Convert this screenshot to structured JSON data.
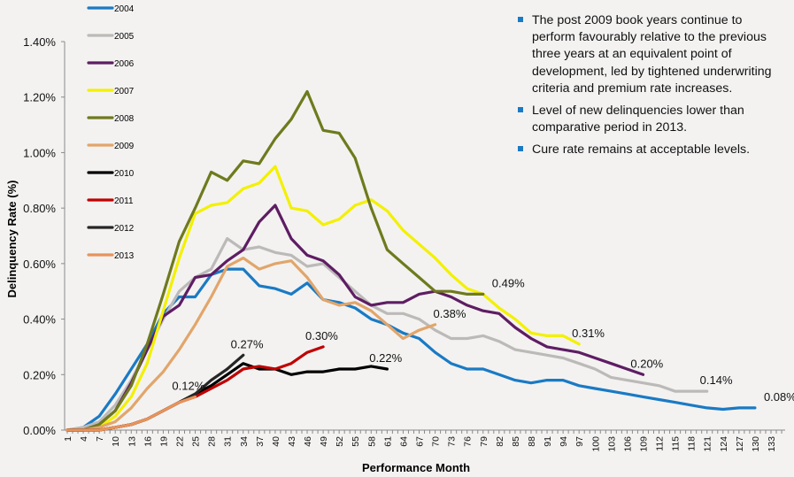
{
  "chart_data": {
    "type": "line",
    "title": "",
    "xlabel": "Performance Month",
    "ylabel": "Delinquency Rate (%)",
    "ylim": [
      0,
      1.4
    ],
    "xlim": [
      1,
      133
    ],
    "y_ticks": [
      "0.00%",
      "0.20%",
      "0.40%",
      "0.60%",
      "0.80%",
      "1.00%",
      "1.20%",
      "1.40%"
    ],
    "y_tick_values": [
      0,
      0.2,
      0.4,
      0.6,
      0.8,
      1.0,
      1.2,
      1.4
    ],
    "x_ticks": [
      1,
      4,
      7,
      10,
      13,
      16,
      19,
      22,
      25,
      28,
      31,
      34,
      37,
      40,
      43,
      46,
      49,
      52,
      55,
      58,
      61,
      64,
      67,
      70,
      73,
      76,
      79,
      82,
      85,
      88,
      91,
      94,
      97,
      100,
      103,
      106,
      109,
      112,
      115,
      118,
      121,
      124,
      127,
      130,
      133
    ],
    "grid": false,
    "legend_position": "top-left",
    "x_step": 3,
    "series": [
      {
        "name": "2004",
        "color": "#1a7ac4",
        "start": 1,
        "values": [
          0.0,
          0.01,
          0.05,
          0.13,
          0.22,
          0.31,
          0.42,
          0.48,
          0.48,
          0.56,
          0.58,
          0.58,
          0.52,
          0.51,
          0.49,
          0.53,
          0.47,
          0.46,
          0.44,
          0.4,
          0.38,
          0.35,
          0.33,
          0.28,
          0.24,
          0.22,
          0.22,
          0.2,
          0.18,
          0.17,
          0.18,
          0.18,
          0.16,
          0.15,
          0.14,
          0.13,
          0.12,
          0.11,
          0.1,
          0.09,
          0.08,
          0.075,
          0.08,
          0.08
        ]
      },
      {
        "name": "2005",
        "color": "#bcbab8",
        "start": 1,
        "values": [
          0.0,
          0.01,
          0.03,
          0.09,
          0.18,
          0.29,
          0.4,
          0.5,
          0.55,
          0.58,
          0.69,
          0.65,
          0.66,
          0.64,
          0.63,
          0.59,
          0.6,
          0.55,
          0.5,
          0.45,
          0.42,
          0.42,
          0.4,
          0.36,
          0.33,
          0.33,
          0.34,
          0.32,
          0.29,
          0.28,
          0.27,
          0.26,
          0.24,
          0.22,
          0.19,
          0.18,
          0.17,
          0.16,
          0.14,
          0.14,
          0.14
        ]
      },
      {
        "name": "2006",
        "color": "#5e1d63",
        "start": 1,
        "values": [
          0.0,
          0.0,
          0.02,
          0.07,
          0.17,
          0.29,
          0.41,
          0.45,
          0.55,
          0.56,
          0.61,
          0.65,
          0.75,
          0.81,
          0.69,
          0.63,
          0.61,
          0.56,
          0.48,
          0.45,
          0.46,
          0.46,
          0.49,
          0.5,
          0.48,
          0.45,
          0.43,
          0.42,
          0.37,
          0.33,
          0.3,
          0.29,
          0.28,
          0.26,
          0.24,
          0.22,
          0.2
        ]
      },
      {
        "name": "2007",
        "color": "#f3f000",
        "start": 1,
        "values": [
          0.0,
          0.0,
          0.01,
          0.05,
          0.12,
          0.24,
          0.43,
          0.62,
          0.78,
          0.81,
          0.82,
          0.87,
          0.89,
          0.95,
          0.8,
          0.79,
          0.74,
          0.76,
          0.81,
          0.83,
          0.79,
          0.72,
          0.67,
          0.62,
          0.56,
          0.51,
          0.49,
          0.44,
          0.4,
          0.35,
          0.34,
          0.34,
          0.31
        ]
      },
      {
        "name": "2008",
        "color": "#6f7a1c",
        "start": 1,
        "values": [
          0.0,
          0.0,
          0.02,
          0.07,
          0.16,
          0.31,
          0.49,
          0.68,
          0.8,
          0.93,
          0.9,
          0.97,
          0.96,
          1.05,
          1.12,
          1.22,
          1.08,
          1.07,
          0.98,
          0.8,
          0.65,
          0.6,
          0.55,
          0.5,
          0.5,
          0.49,
          0.49
        ]
      },
      {
        "name": "2009",
        "color": "#e2a56a",
        "start": 1,
        "values": [
          0.0,
          0.0,
          0.01,
          0.03,
          0.08,
          0.15,
          0.21,
          0.29,
          0.38,
          0.48,
          0.59,
          0.62,
          0.58,
          0.6,
          0.61,
          0.55,
          0.47,
          0.45,
          0.46,
          0.43,
          0.38,
          0.33,
          0.36,
          0.38
        ]
      },
      {
        "name": "2010",
        "color": "#000000",
        "start": 1,
        "values": [
          0.0,
          0.0,
          0.0,
          0.01,
          0.02,
          0.04,
          0.07,
          0.1,
          0.13,
          0.16,
          0.2,
          0.24,
          0.22,
          0.22,
          0.2,
          0.21,
          0.21,
          0.22,
          0.22,
          0.23,
          0.22
        ]
      },
      {
        "name": "2011",
        "color": "#c00000",
        "start": 1,
        "values": [
          0.0,
          0.0,
          0.0,
          0.01,
          0.02,
          0.04,
          0.07,
          0.1,
          0.12,
          0.15,
          0.18,
          0.22,
          0.23,
          0.22,
          0.24,
          0.28,
          0.3
        ]
      },
      {
        "name": "2012",
        "color": "#262626",
        "start": 1,
        "values": [
          0.0,
          0.0,
          0.0,
          0.01,
          0.02,
          0.04,
          0.07,
          0.1,
          0.13,
          0.18,
          0.22,
          0.27
        ]
      },
      {
        "name": "2013",
        "color": "#e8935a",
        "start": 1,
        "values": [
          0.0,
          0.0,
          0.0,
          0.01,
          0.02,
          0.04,
          0.07,
          0.1,
          0.12
        ]
      }
    ],
    "annotations": [
      {
        "text": "0.49%",
        "month": 80,
        "value": 0.49
      },
      {
        "text": "0.38%",
        "month": 69,
        "value": 0.38
      },
      {
        "text": "0.31%",
        "month": 95,
        "value": 0.31
      },
      {
        "text": "0.20%",
        "month": 106,
        "value": 0.2
      },
      {
        "text": "0.14%",
        "month": 119,
        "value": 0.14
      },
      {
        "text": "0.08%",
        "month": 131,
        "value": 0.08
      },
      {
        "text": "0.30%",
        "month": 45,
        "value": 0.3
      },
      {
        "text": "0.27%",
        "month": 31,
        "value": 0.27
      },
      {
        "text": "0.22%",
        "month": 57,
        "value": 0.22
      },
      {
        "text": "0.12%",
        "month": 20,
        "value": 0.12
      }
    ]
  },
  "commentary": {
    "bullets": [
      "The post 2009 book years continue to perform favourably relative to the previous three years at an equivalent point of development, led by tightened underwriting criteria and premium rate increases.",
      "Level of new delinquencies lower than comparative period in 2013.",
      "Cure rate remains at acceptable levels."
    ],
    "bullet_color": "#1a7ac4"
  }
}
